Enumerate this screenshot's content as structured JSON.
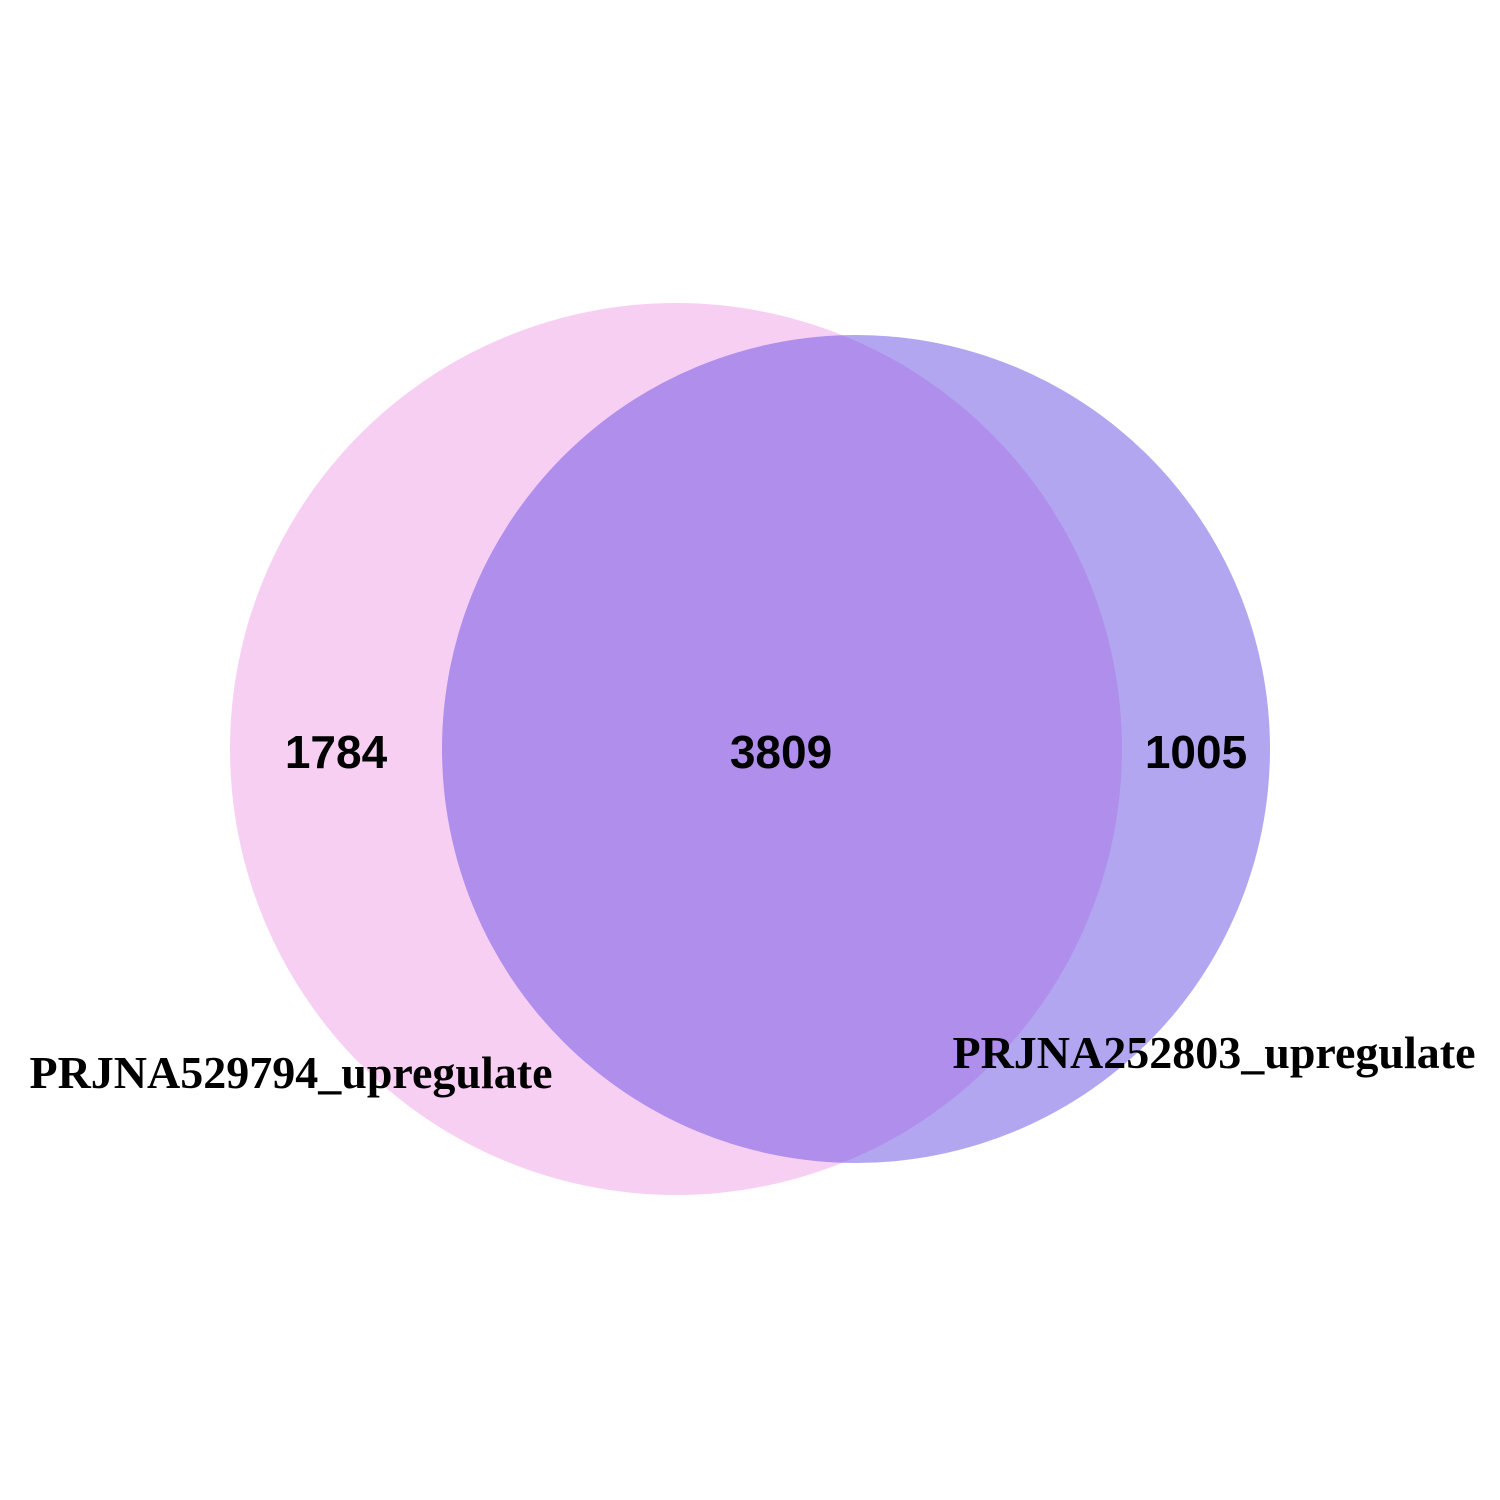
{
  "chart_data": {
    "type": "venn",
    "sets": [
      {
        "name": "PRJNA529794_upregulate",
        "only_count": "1784",
        "color": "#ee99e6"
      },
      {
        "name": "PRJNA252803_upregulate",
        "only_count": "1005",
        "color": "#6f57e4"
      }
    ],
    "intersection_count": "3809"
  }
}
